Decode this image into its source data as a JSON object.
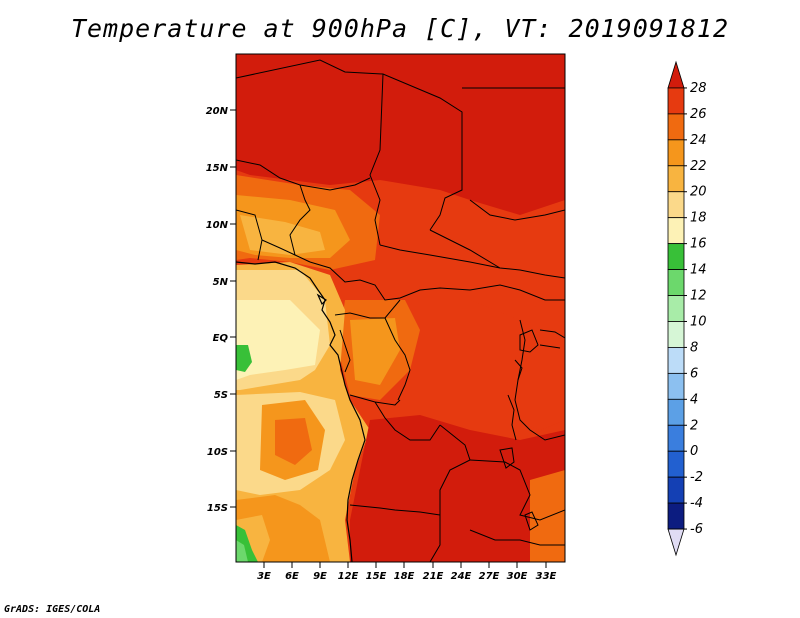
{
  "title": "Temperature at 900hPa [C], VT: 2019091812",
  "credit": "GrADS: IGES/COLA",
  "map": {
    "region": "Central Africa",
    "lat_labels": [
      "20N",
      "15N",
      "10N",
      "5N",
      "EQ",
      "5S",
      "10S",
      "15S"
    ],
    "lon_labels": [
      "3E",
      "6E",
      "9E",
      "12E",
      "15E",
      "18E",
      "21E",
      "24E",
      "27E",
      "30E",
      "33E"
    ]
  },
  "colorbar": {
    "labels": [
      "28",
      "26",
      "24",
      "22",
      "20",
      "18",
      "16",
      "14",
      "12",
      "10",
      "8",
      "6",
      "4",
      "2",
      "0",
      "-2",
      "-4",
      "-6"
    ],
    "colors": [
      "#d21c0c",
      "#e63a10",
      "#f06a10",
      "#f5961c",
      "#f8b440",
      "#fbd98a",
      "#fdf2b6",
      "#38c038",
      "#6cd86c",
      "#a8eca8",
      "#d6f6d6",
      "#bcdcf8",
      "#8cc0f0",
      "#5ca0e6",
      "#3a7ede",
      "#2260d0",
      "#1440b4",
      "#0c1c80",
      "#e0dcf4"
    ]
  }
}
